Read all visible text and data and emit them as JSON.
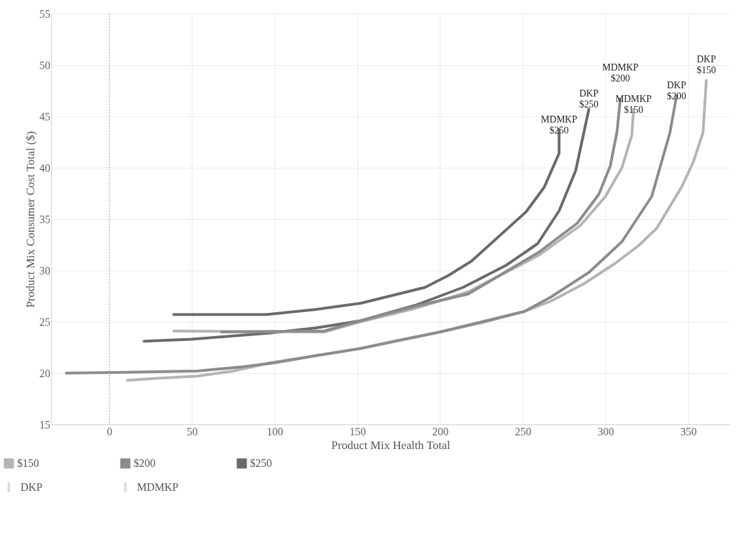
{
  "chart_data": {
    "type": "line",
    "xlabel": "Product Mix Health Total",
    "ylabel": "Product Mix Consumer Cost Total ($)",
    "xlim": [
      -35,
      375
    ],
    "xticks": [
      0,
      50,
      100,
      150,
      200,
      250,
      300,
      350
    ],
    "ylim": [
      15,
      55
    ],
    "yticks": [
      15,
      20,
      25,
      30,
      35,
      40,
      45,
      50,
      55
    ],
    "grid": true,
    "line_style": "solid",
    "annotations": [
      "$150",
      "$200",
      "$250",
      "DKP",
      "MDMKP"
    ],
    "ref_lines": [
      {
        "axis": "x",
        "value": 0,
        "color": "#808080",
        "line_style": "dotted"
      }
    ],
    "series": [
      {
        "name": "DKP $150",
        "color": "#b4b4b4",
        "x": [
          11,
          30,
          53,
          75,
          97,
          125,
          152,
          175,
          200,
          225,
          251,
          267,
          287,
          306,
          320,
          331,
          346,
          353,
          359,
          361
        ],
        "values": [
          19.3,
          19.5,
          19.7,
          20.2,
          21.0,
          21.7,
          22.4,
          23.2,
          24.0,
          24.9,
          26.0,
          27.0,
          28.7,
          30.7,
          32.4,
          34.1,
          38.1,
          40.5,
          43.4,
          48.5
        ]
      },
      {
        "name": "DKP $200",
        "color": "#8c8c8c",
        "x": [
          -26,
          0,
          53,
          80,
          100,
          125,
          152,
          200,
          251,
          267,
          290,
          310,
          328,
          339,
          343
        ],
        "values": [
          20.0,
          20.05,
          20.2,
          20.6,
          21.0,
          21.7,
          22.4,
          24.0,
          26.0,
          27.4,
          29.8,
          32.8,
          37.2,
          43.4,
          47.0
        ]
      },
      {
        "name": "DKP $250",
        "color": "#6a6a6a",
        "x": [
          21,
          50,
          97,
          125,
          152,
          185,
          214,
          240,
          259,
          272,
          282,
          290
        ],
        "values": [
          23.1,
          23.3,
          23.9,
          24.4,
          25.1,
          26.6,
          28.35,
          30.5,
          32.6,
          35.8,
          39.7,
          45.7
        ]
      },
      {
        "name": "MDMKP $150",
        "color": "#b4b4b4",
        "x": [
          39,
          80,
          130,
          152,
          185,
          217,
          260,
          285,
          300,
          310,
          316,
          317
        ],
        "values": [
          24.1,
          24.05,
          24.0,
          25.0,
          26.3,
          27.9,
          31.5,
          34.4,
          37.2,
          40.0,
          43.2,
          45.7
        ]
      },
      {
        "name": "MDMKP $200",
        "color": "#8c8c8c",
        "x": [
          68,
          130,
          152,
          185,
          217,
          260,
          283,
          296,
          303,
          307,
          309
        ],
        "values": [
          24.0,
          24.1,
          25.1,
          26.5,
          27.7,
          31.8,
          34.6,
          37.4,
          40.2,
          43.5,
          46.7
        ]
      },
      {
        "name": "MDMKP $250",
        "color": "#6a6a6a",
        "x": [
          39,
          95,
          125,
          152,
          191,
          205,
          219,
          252,
          263,
          272,
          272
        ],
        "values": [
          25.7,
          25.7,
          26.2,
          26.8,
          28.35,
          29.5,
          30.9,
          35.7,
          38.1,
          41.4,
          43.7
        ]
      }
    ]
  }
}
